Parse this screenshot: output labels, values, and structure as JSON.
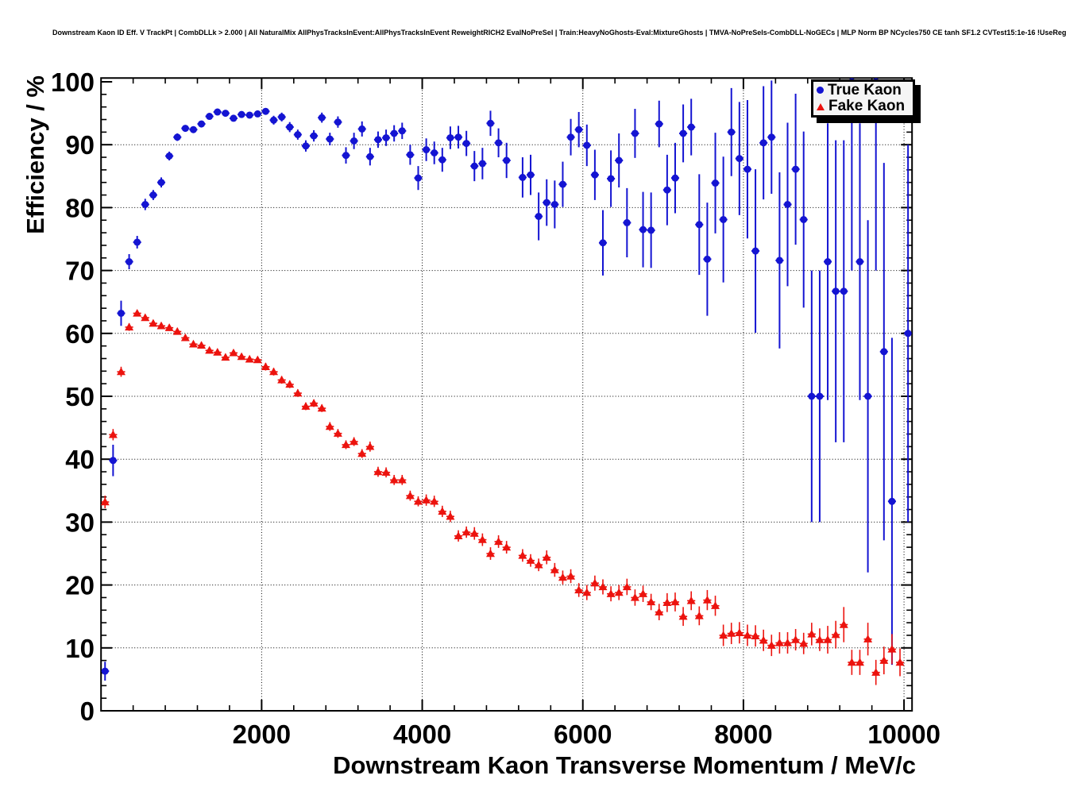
{
  "page": {
    "background": "#ffffff"
  },
  "chart_data": {
    "type": "scatter",
    "title": "Downstream Kaon ID Eff. V TrackPt | CombDLLk > 2.000 | All NaturalMix AllPhysTracksInEvent:AllPhysTracksInEvent ReweightRICH2 EvalNoPreSel | Train:HeavyNoGhosts-Eval:MixtureGhosts | TMVA-NoPreSels-CombDLL-NoGECs | MLP Norm BP NCycles750 CE tanh SF1.2 CVTest15:1e-16 !UseReg",
    "xlabel": "Downstream Kaon Transverse Momentum / MeV/c",
    "ylabel": "Efficiency / %",
    "xlim": [
      0,
      10100
    ],
    "ylim": [
      0,
      100.6
    ],
    "x_major_ticks": [
      2000,
      4000,
      6000,
      8000,
      10000
    ],
    "x_minor_step": 400,
    "y_major_ticks": [
      0,
      10,
      20,
      30,
      40,
      50,
      60,
      70,
      80,
      90,
      100
    ],
    "y_minor_step": 2,
    "grid": {
      "style": "dotted",
      "color": "#000000",
      "at_major_ticks": true
    },
    "bin_half_width": 50,
    "legend": {
      "position": "top-right",
      "entries": [
        {
          "label": "True Kaon",
          "marker": "circle",
          "color": "#1414d2"
        },
        {
          "label": "Fake Kaon",
          "marker": "triangle-up",
          "color": "#ec130e"
        }
      ]
    },
    "series": [
      {
        "name": "True Kaon",
        "marker": "circle",
        "color": "#1414d2",
        "points": [
          [
            50,
            6.3,
            1.5
          ],
          [
            150,
            39.8,
            2.5
          ],
          [
            250,
            63.2,
            2.0
          ],
          [
            350,
            71.4,
            1.2
          ],
          [
            450,
            74.5,
            1.0
          ],
          [
            550,
            80.5,
            0.9
          ],
          [
            650,
            82.0,
            0.8
          ],
          [
            750,
            84.0,
            0.8
          ],
          [
            850,
            88.2,
            0.7
          ],
          [
            950,
            91.2,
            0.6
          ],
          [
            1050,
            92.6,
            0.5
          ],
          [
            1150,
            92.4,
            0.5
          ],
          [
            1250,
            93.3,
            0.5
          ],
          [
            1350,
            94.5,
            0.5
          ],
          [
            1450,
            95.2,
            0.5
          ],
          [
            1550,
            95.0,
            0.5
          ],
          [
            1650,
            94.2,
            0.5
          ],
          [
            1750,
            94.8,
            0.5
          ],
          [
            1850,
            94.7,
            0.5
          ],
          [
            1950,
            94.9,
            0.5
          ],
          [
            2050,
            95.3,
            0.5
          ],
          [
            2150,
            93.9,
            0.7
          ],
          [
            2250,
            94.4,
            0.7
          ],
          [
            2350,
            92.8,
            0.8
          ],
          [
            2450,
            91.6,
            0.8
          ],
          [
            2550,
            89.8,
            0.9
          ],
          [
            2650,
            91.4,
            0.9
          ],
          [
            2750,
            94.3,
            0.8
          ],
          [
            2850,
            90.9,
            1.0
          ],
          [
            2950,
            93.6,
            0.9
          ],
          [
            3050,
            88.3,
            1.3
          ],
          [
            3150,
            90.6,
            1.3
          ],
          [
            3250,
            92.5,
            1.2
          ],
          [
            3350,
            88.1,
            1.4
          ],
          [
            3450,
            90.8,
            1.3
          ],
          [
            3550,
            91.1,
            1.3
          ],
          [
            3650,
            91.8,
            1.3
          ],
          [
            3750,
            92.2,
            1.3
          ],
          [
            3850,
            88.4,
            1.6
          ],
          [
            3950,
            84.7,
            1.9
          ],
          [
            4050,
            89.2,
            1.8
          ],
          [
            4150,
            88.7,
            1.8
          ],
          [
            4250,
            87.6,
            1.9
          ],
          [
            4350,
            91.1,
            1.8
          ],
          [
            4450,
            91.2,
            1.8
          ],
          [
            4550,
            90.2,
            2.0
          ],
          [
            4650,
            86.6,
            2.4
          ],
          [
            4750,
            87.0,
            2.5
          ],
          [
            4850,
            93.4,
            2.0
          ],
          [
            4950,
            90.3,
            2.3
          ],
          [
            5050,
            87.5,
            2.8
          ],
          [
            5250,
            84.8,
            3.2
          ],
          [
            5350,
            85.2,
            3.2
          ],
          [
            5450,
            78.6,
            3.8
          ],
          [
            5550,
            80.8,
            3.7
          ],
          [
            5650,
            80.5,
            3.8
          ],
          [
            5750,
            83.7,
            3.6
          ],
          [
            5850,
            91.2,
            2.9
          ],
          [
            5950,
            92.4,
            2.8
          ],
          [
            6050,
            89.9,
            3.3
          ],
          [
            6150,
            85.2,
            4.0
          ],
          [
            6250,
            74.4,
            5.2
          ],
          [
            6350,
            84.6,
            4.5
          ],
          [
            6450,
            87.5,
            4.3
          ],
          [
            6550,
            77.6,
            5.5
          ],
          [
            6650,
            91.8,
            3.9
          ],
          [
            6750,
            76.5,
            6.0
          ],
          [
            6850,
            76.4,
            6.0
          ],
          [
            6950,
            93.3,
            3.7
          ],
          [
            7050,
            82.8,
            5.6
          ],
          [
            7150,
            84.7,
            5.6
          ],
          [
            7250,
            91.8,
            4.6
          ],
          [
            7350,
            92.8,
            4.5
          ],
          [
            7450,
            77.3,
            8.0
          ],
          [
            7550,
            71.8,
            9.0
          ],
          [
            7650,
            83.9,
            8.0
          ],
          [
            7750,
            78.1,
            10.0
          ],
          [
            7850,
            92.0,
            7.0
          ],
          [
            7950,
            87.8,
            9.0
          ],
          [
            8050,
            86.1,
            11.0
          ],
          [
            8150,
            73.1,
            13.0
          ],
          [
            8250,
            90.3,
            9.0
          ],
          [
            8350,
            91.2,
            9.0
          ],
          [
            8450,
            71.6,
            14.0
          ],
          [
            8550,
            80.5,
            13.0
          ],
          [
            8650,
            86.1,
            12.0
          ],
          [
            8750,
            78.1,
            14.0
          ],
          [
            8850,
            50.0,
            20.0
          ],
          [
            8950,
            50.0,
            20.0
          ],
          [
            9050,
            71.4,
            22.0
          ],
          [
            9150,
            66.7,
            24.0
          ],
          [
            9250,
            66.7,
            24.0
          ],
          [
            9350,
            100.0,
            30.0
          ],
          [
            9450,
            71.4,
            22.0
          ],
          [
            9550,
            50.0,
            28.0
          ],
          [
            9650,
            100.0,
            30.0
          ],
          [
            9750,
            57.1,
            30.0
          ],
          [
            9850,
            33.3,
            26.0
          ],
          [
            10050,
            60.0,
            30.0
          ]
        ]
      },
      {
        "name": "Fake Kaon",
        "marker": "triangle-up",
        "color": "#ec130e",
        "points": [
          [
            50,
            33.2,
            1.0
          ],
          [
            150,
            43.9,
            0.9
          ],
          [
            250,
            53.9,
            0.8
          ],
          [
            350,
            61.0,
            0.6
          ],
          [
            450,
            63.2,
            0.5
          ],
          [
            550,
            62.5,
            0.5
          ],
          [
            650,
            61.6,
            0.5
          ],
          [
            750,
            61.2,
            0.5
          ],
          [
            850,
            60.9,
            0.5
          ],
          [
            950,
            60.3,
            0.5
          ],
          [
            1050,
            59.3,
            0.5
          ],
          [
            1150,
            58.3,
            0.5
          ],
          [
            1250,
            58.1,
            0.5
          ],
          [
            1350,
            57.3,
            0.5
          ],
          [
            1450,
            57.0,
            0.5
          ],
          [
            1550,
            56.2,
            0.5
          ],
          [
            1650,
            56.9,
            0.5
          ],
          [
            1750,
            56.3,
            0.5
          ],
          [
            1850,
            55.9,
            0.5
          ],
          [
            1950,
            55.8,
            0.5
          ],
          [
            2050,
            54.7,
            0.6
          ],
          [
            2150,
            53.9,
            0.6
          ],
          [
            2250,
            52.6,
            0.6
          ],
          [
            2350,
            51.9,
            0.6
          ],
          [
            2450,
            50.5,
            0.6
          ],
          [
            2550,
            48.4,
            0.6
          ],
          [
            2650,
            48.9,
            0.6
          ],
          [
            2750,
            48.1,
            0.6
          ],
          [
            2850,
            45.2,
            0.7
          ],
          [
            2950,
            44.1,
            0.7
          ],
          [
            3050,
            42.3,
            0.7
          ],
          [
            3150,
            42.8,
            0.7
          ],
          [
            3250,
            40.9,
            0.7
          ],
          [
            3350,
            42.0,
            0.8
          ],
          [
            3450,
            38.0,
            0.8
          ],
          [
            3550,
            37.9,
            0.8
          ],
          [
            3650,
            36.7,
            0.8
          ],
          [
            3750,
            36.7,
            0.8
          ],
          [
            3850,
            34.2,
            0.8
          ],
          [
            3950,
            33.3,
            0.8
          ],
          [
            4050,
            33.5,
            0.9
          ],
          [
            4150,
            33.3,
            0.9
          ],
          [
            4250,
            31.7,
            0.9
          ],
          [
            4350,
            30.9,
            0.9
          ],
          [
            4450,
            27.8,
            0.9
          ],
          [
            4550,
            28.4,
            0.9
          ],
          [
            4650,
            28.2,
            1.0
          ],
          [
            4750,
            27.2,
            1.0
          ],
          [
            4850,
            25.0,
            1.0
          ],
          [
            4950,
            26.9,
            1.0
          ],
          [
            5050,
            26.0,
            1.0
          ],
          [
            5250,
            24.7,
            1.0
          ],
          [
            5350,
            23.9,
            1.0
          ],
          [
            5450,
            23.2,
            1.0
          ],
          [
            5550,
            24.4,
            1.1
          ],
          [
            5650,
            22.4,
            1.1
          ],
          [
            5750,
            21.2,
            1.1
          ],
          [
            5850,
            21.4,
            1.1
          ],
          [
            5950,
            19.2,
            1.1
          ],
          [
            6050,
            18.8,
            1.2
          ],
          [
            6150,
            20.3,
            1.2
          ],
          [
            6250,
            19.7,
            1.2
          ],
          [
            6350,
            18.6,
            1.2
          ],
          [
            6450,
            18.8,
            1.2
          ],
          [
            6550,
            19.7,
            1.3
          ],
          [
            6650,
            18.0,
            1.3
          ],
          [
            6750,
            18.6,
            1.3
          ],
          [
            6850,
            17.3,
            1.3
          ],
          [
            6950,
            15.7,
            1.3
          ],
          [
            7050,
            17.2,
            1.5
          ],
          [
            7150,
            17.3,
            1.5
          ],
          [
            7250,
            15.0,
            1.5
          ],
          [
            7350,
            17.5,
            1.5
          ],
          [
            7450,
            15.1,
            1.5
          ],
          [
            7550,
            17.6,
            1.6
          ],
          [
            7650,
            16.7,
            1.6
          ],
          [
            7750,
            12.0,
            1.7
          ],
          [
            7850,
            12.3,
            1.7
          ],
          [
            7950,
            12.4,
            1.7
          ],
          [
            8050,
            12.0,
            1.7
          ],
          [
            8150,
            11.9,
            1.7
          ],
          [
            8250,
            11.2,
            1.7
          ],
          [
            8350,
            10.4,
            1.7
          ],
          [
            8450,
            10.8,
            1.7
          ],
          [
            8550,
            10.8,
            1.7
          ],
          [
            8650,
            11.3,
            1.7
          ],
          [
            8750,
            10.7,
            1.7
          ],
          [
            8850,
            12.2,
            1.8
          ],
          [
            8950,
            11.3,
            1.8
          ],
          [
            9050,
            11.3,
            2.2
          ],
          [
            9150,
            12.1,
            2.2
          ],
          [
            9250,
            13.7,
            2.8
          ],
          [
            9350,
            7.7,
            2.0
          ],
          [
            9450,
            7.7,
            2.0
          ],
          [
            9550,
            11.4,
            2.6
          ],
          [
            9650,
            6.1,
            2.0
          ],
          [
            9750,
            8.0,
            2.2
          ],
          [
            9850,
            9.8,
            2.4
          ],
          [
            9950,
            7.7,
            2.2
          ]
        ]
      }
    ]
  }
}
